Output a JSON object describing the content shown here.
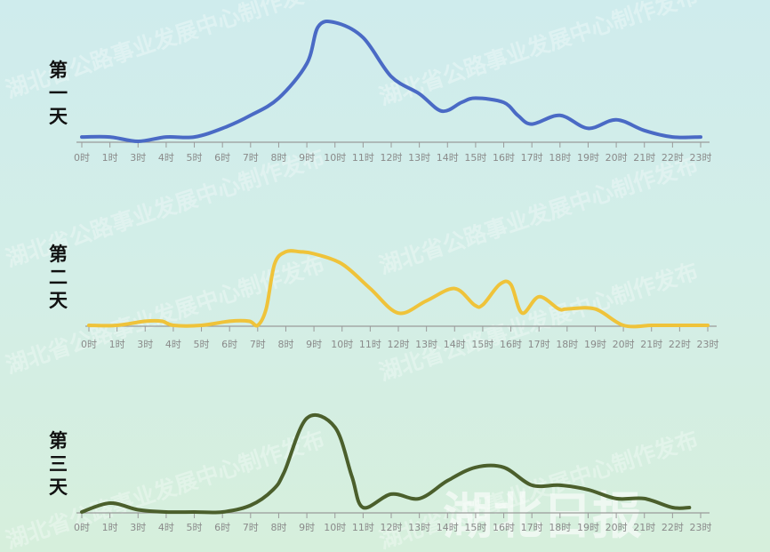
{
  "watermark": "湖北省公路事业发展中心制作发布",
  "logo_text": "湖北日报",
  "chart_data": [
    {
      "type": "line",
      "title": "第一天",
      "categories": [
        "0时",
        "1时",
        "3时",
        "4时",
        "5时",
        "6时",
        "7时",
        "8时",
        "9时",
        "10时",
        "11时",
        "12时",
        "13时",
        "14时",
        "15时",
        "16时",
        "17时",
        "18时",
        "19时",
        "20时",
        "21时",
        "22时",
        "23时"
      ],
      "color": "#4a6ac5",
      "x": [
        0,
        1,
        2,
        3,
        4,
        5,
        6,
        7,
        8,
        8.4,
        9,
        10,
        11,
        12,
        12.8,
        13.5,
        14,
        15,
        15.5,
        16,
        17,
        18,
        19,
        20,
        21,
        22
      ],
      "values": [
        2,
        2,
        0,
        2,
        2,
        6,
        12,
        20,
        36,
        53,
        55,
        48,
        30,
        22,
        14,
        18,
        20,
        18,
        12,
        8,
        12,
        6,
        10,
        5,
        2,
        2
      ],
      "ylim": [
        0,
        58
      ],
      "grid": false
    },
    {
      "type": "line",
      "title": "第二天",
      "categories": [
        "0时",
        "1时",
        "3时",
        "4时",
        "5时",
        "6时",
        "7时",
        "8时",
        "9时",
        "10时",
        "11时",
        "12时",
        "13时",
        "14时",
        "15时",
        "16时",
        "17时",
        "18时",
        "19时",
        "20时",
        "21时",
        "22时",
        "23时"
      ],
      "color": "#efc33a",
      "x": [
        0,
        1,
        2,
        2.6,
        3,
        4,
        5,
        5.7,
        6,
        6.3,
        6.6,
        7,
        7.5,
        8,
        9,
        10,
        11,
        12,
        13,
        13.7,
        14,
        14.6,
        15,
        15.4,
        16,
        16.7,
        17,
        18,
        19,
        20,
        20.6,
        21,
        22
      ],
      "values": [
        0,
        0,
        2,
        2,
        0,
        0,
        2,
        2,
        0,
        8,
        30,
        36,
        36,
        35,
        30,
        18,
        6,
        12,
        18,
        10,
        10,
        20,
        20,
        6,
        14,
        8,
        8,
        8,
        0,
        0,
        0,
        0,
        0
      ],
      "ylim": [
        0,
        40
      ],
      "grid": false
    },
    {
      "type": "line",
      "title": "第三天",
      "categories": [
        "0时",
        "1时",
        "3时",
        "4时",
        "5时",
        "6时",
        "7时",
        "8时",
        "9时",
        "10时",
        "11时",
        "12时",
        "13时",
        "14时",
        "15时",
        "16时",
        "17时",
        "18时",
        "19时",
        "20时",
        "21时",
        "22时",
        "23时"
      ],
      "color": "#4b5f2c",
      "x": [
        0,
        1,
        2,
        3,
        4,
        5,
        6,
        6.8,
        7.2,
        8,
        9,
        9.6,
        10,
        11,
        12,
        13,
        14,
        15,
        16,
        17,
        18,
        19,
        20,
        21,
        21.6
      ],
      "values": [
        0,
        4,
        1,
        0,
        0,
        0,
        3,
        10,
        18,
        42,
        38,
        16,
        2,
        8,
        6,
        14,
        20,
        20,
        12,
        12,
        10,
        6,
        6,
        2,
        2
      ],
      "ylim": [
        0,
        45
      ],
      "grid": false
    }
  ]
}
